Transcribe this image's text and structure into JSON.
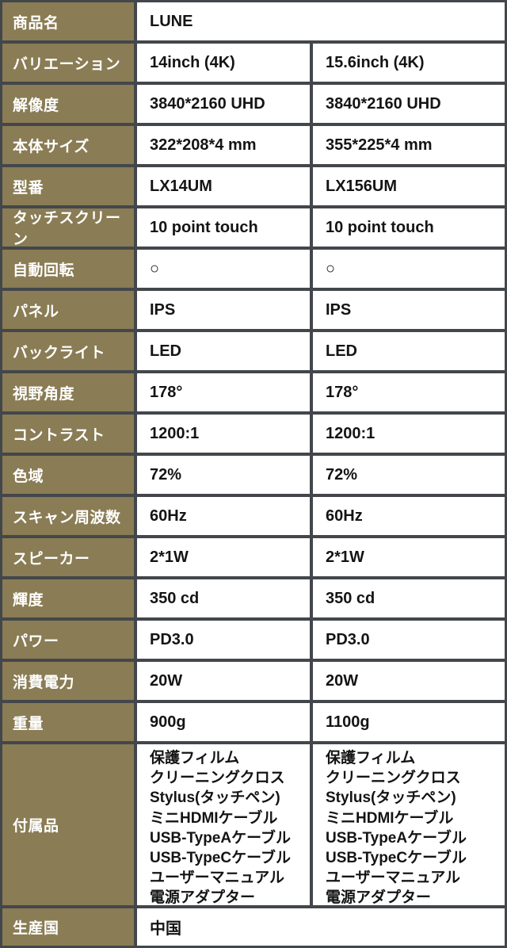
{
  "product_table": {
    "colors": {
      "label_background": "#8a7c54",
      "border": "#43474b",
      "label_text": "#ffffff",
      "value_text": "#141414",
      "cell_background": "#ffffff"
    },
    "rows": [
      {
        "label": "商品名",
        "value": "LUNE"
      },
      {
        "label": "バリエーション",
        "col1": "14inch (4K)",
        "col2": "15.6inch (4K)"
      },
      {
        "label": "解像度",
        "col1": "3840*2160 UHD",
        "col2": "3840*2160 UHD"
      },
      {
        "label": "本体サイズ",
        "col1": "322*208*4 mm",
        "col2": "355*225*4 mm"
      },
      {
        "label": "型番",
        "col1": "LX14UM",
        "col2": "LX156UM"
      },
      {
        "label": "タッチスクリーン",
        "col1": "10 point touch",
        "col2": "10 point touch"
      },
      {
        "label": "自動回転",
        "col1": "○",
        "col2": "○"
      },
      {
        "label": "パネル",
        "col1": "IPS",
        "col2": "IPS"
      },
      {
        "label": "バックライト",
        "col1": "LED",
        "col2": "LED"
      },
      {
        "label": "視野角度",
        "col1": "178°",
        "col2": "178°"
      },
      {
        "label": "コントラスト",
        "col1": "1200:1",
        "col2": "1200:1"
      },
      {
        "label": "色域",
        "col1": "72%",
        "col2": "72%"
      },
      {
        "label": "スキャン周波数",
        "col1": "60Hz",
        "col2": "60Hz"
      },
      {
        "label": "スピーカー",
        "col1": "2*1W",
        "col2": "2*1W"
      },
      {
        "label": "輝度",
        "col1": "350 cd",
        "col2": "350 cd"
      },
      {
        "label": "パワー",
        "col1": "PD3.0",
        "col2": "PD3.0"
      },
      {
        "label": "消費電力",
        "col1": "20W",
        "col2": "20W"
      },
      {
        "label": "重量",
        "col1": "900g",
        "col2": "1100g"
      },
      {
        "label": "付属品",
        "col1": "保護フィルム\nクリーニングクロス\nStylus(タッチペン)\nミニHDMIケーブル\nUSB-TypeAケーブル\nUSB-TypeCケーブル\nユーザーマニュアル\n電源アダプター",
        "col2": "保護フィルム\nクリーニングクロス\nStylus(タッチペン)\nミニHDMIケーブル\nUSB-TypeAケーブル\nUSB-TypeCケーブル\nユーザーマニュアル\n電源アダプター"
      },
      {
        "label": "生産国",
        "value": "中国"
      }
    ]
  }
}
